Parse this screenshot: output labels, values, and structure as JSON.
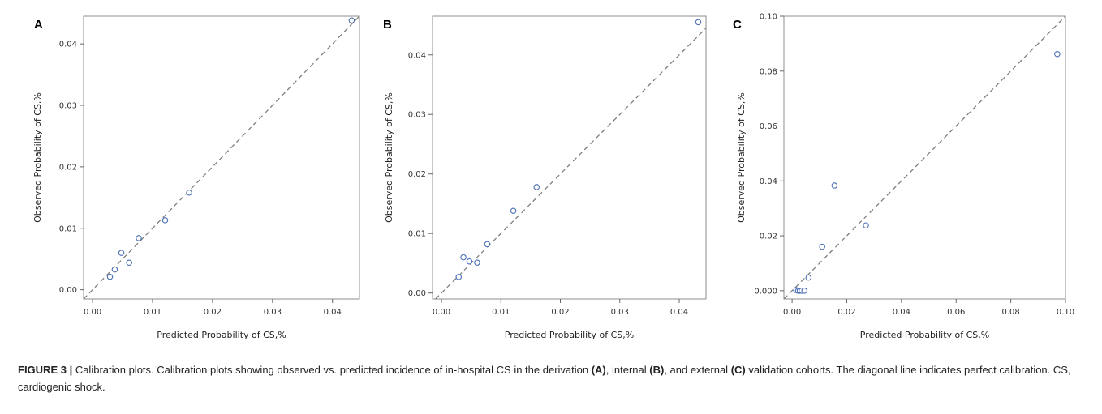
{
  "caption": {
    "label": "FIGURE 3 |",
    "t1": " Calibration plots. Calibration plots showing observed vs. predicted incidence of in-hospital CS in the derivation ",
    "a": "(A)",
    "t2": ", internal ",
    "b": "(B)",
    "t3": ", and external ",
    "c": "(C)",
    "t4": " validation cohorts. The diagonal line indicates perfect calibration. CS, cardiogenic shock."
  },
  "colors": {
    "marker": "#4a6fb5",
    "reference_line": "#7f7f7f",
    "frame": "#999999"
  },
  "chart_data": [
    {
      "type": "scatter",
      "panel": "A",
      "xlabel": "Predicted Probability of CS,%",
      "ylabel": "Observed Probability of CS,%",
      "xlim": [
        -0.0015,
        0.0445
      ],
      "ylim": [
        -0.0015,
        0.0445
      ],
      "xticks": [
        "0.00",
        "0.01",
        "0.02",
        "0.03",
        "0.04"
      ],
      "yticks": [
        "0.00",
        "0.01",
        "0.02",
        "0.03",
        "0.04"
      ],
      "reference_line": "y = x",
      "grid": false,
      "points": [
        [
          0.0029,
          0.0021
        ],
        [
          0.0037,
          0.0033
        ],
        [
          0.0048,
          0.006
        ],
        [
          0.0061,
          0.0044
        ],
        [
          0.0077,
          0.0084
        ],
        [
          0.0121,
          0.0113
        ],
        [
          0.0161,
          0.0158
        ],
        [
          0.0432,
          0.0438
        ]
      ]
    },
    {
      "type": "scatter",
      "panel": "B",
      "xlabel": "Predicted Probability of CS,%",
      "ylabel": "Observed Probability of CS,%",
      "xlim": [
        -0.0015,
        0.0445
      ],
      "ylim": [
        -0.001,
        0.0465
      ],
      "xticks": [
        "0.00",
        "0.01",
        "0.02",
        "0.03",
        "0.04"
      ],
      "yticks": [
        "0.00",
        "0.01",
        "0.02",
        "0.03",
        "0.04"
      ],
      "reference_line": "y = x",
      "grid": false,
      "points": [
        [
          0.0029,
          0.0027
        ],
        [
          0.0037,
          0.006
        ],
        [
          0.0047,
          0.0053
        ],
        [
          0.006,
          0.0051
        ],
        [
          0.0077,
          0.0082
        ],
        [
          0.0121,
          0.0138
        ],
        [
          0.016,
          0.0178
        ],
        [
          0.0432,
          0.0455
        ]
      ]
    },
    {
      "type": "scatter",
      "panel": "C",
      "xlabel": "Predicted Probability of CS,%",
      "ylabel": "Observed Probability of CS,%",
      "xlim": [
        -0.003,
        0.1
      ],
      "ylim": [
        -0.003,
        0.1
      ],
      "xticks": [
        "0.00",
        "0.02",
        "0.04",
        "0.06",
        "0.08",
        "0.10"
      ],
      "yticks": [
        "0.000",
        "0.02",
        "0.04",
        "0.06",
        "0.08",
        "0.10"
      ],
      "reference_line": "y = x",
      "grid": false,
      "points": [
        [
          0.0015,
          0.0002
        ],
        [
          0.0022,
          0.0
        ],
        [
          0.0028,
          0.0
        ],
        [
          0.0035,
          0.0
        ],
        [
          0.0045,
          0.0
        ],
        [
          0.006,
          0.0048
        ],
        [
          0.011,
          0.016
        ],
        [
          0.0155,
          0.0383
        ],
        [
          0.027,
          0.0238
        ],
        [
          0.097,
          0.0862
        ]
      ]
    }
  ]
}
